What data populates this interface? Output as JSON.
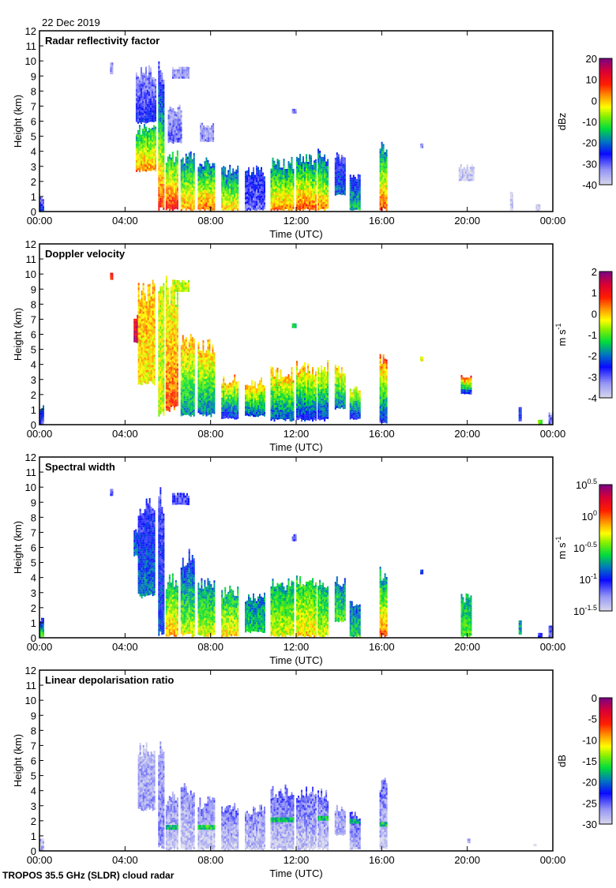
{
  "date": "22 Dec 2019",
  "footer": "TROPOS 35.5 GHz (SLDR) cloud radar",
  "chart_data": [
    {
      "type": "heatmap",
      "title": "Radar reflectivity factor",
      "xlabel": "Time (UTC)",
      "ylabel": "Height (km)",
      "xlim": [
        0,
        24
      ],
      "ylim": [
        0,
        12
      ],
      "x_ticks": [
        "00:00",
        "04:00",
        "08:00",
        "12:00",
        "16:00",
        "20:00",
        "00:00"
      ],
      "y_ticks": [
        "0",
        "1",
        "2",
        "3",
        "4",
        "5",
        "6",
        "7",
        "8",
        "9",
        "10",
        "11",
        "12"
      ],
      "colorbar": {
        "unit": "dBz",
        "range": [
          -40,
          20
        ],
        "scale": "linear",
        "ticks": [
          {
            "base": "20"
          },
          {
            "base": "10"
          },
          {
            "base": "0"
          },
          {
            "base": "-10"
          },
          {
            "base": "-20"
          },
          {
            "base": "-30"
          },
          {
            "base": "-40"
          }
        ]
      },
      "echo_fields": [
        "start_hour",
        "end_hour",
        "base_km",
        "top_km",
        "value_at_base",
        "value_at_top"
      ],
      "echoes": [
        [
          0.0,
          0.15,
          0,
          1.0,
          -25,
          -32
        ],
        [
          3.3,
          3.4,
          9.1,
          9.9,
          -33,
          -35
        ],
        [
          4.5,
          5.4,
          5.8,
          9.6,
          -25,
          -33
        ],
        [
          4.5,
          5.4,
          2.6,
          5.8,
          3,
          -15
        ],
        [
          5.55,
          5.8,
          0,
          10,
          8,
          -30
        ],
        [
          5.9,
          6.45,
          0,
          4.2,
          10,
          -15
        ],
        [
          6.2,
          7.0,
          8.8,
          9.6,
          -32,
          -36
        ],
        [
          6.0,
          6.6,
          4.5,
          7.0,
          -30,
          -34
        ],
        [
          6.6,
          7.2,
          0,
          4.1,
          2,
          -20
        ],
        [
          7.4,
          8.2,
          0,
          3.6,
          5,
          -20
        ],
        [
          7.5,
          8.1,
          4.6,
          5.8,
          -32,
          -35
        ],
        [
          8.5,
          9.3,
          0,
          3.1,
          0,
          -22
        ],
        [
          9.6,
          10.5,
          0,
          3.0,
          -30,
          -25
        ],
        [
          10.8,
          11.9,
          0,
          3.6,
          3,
          -20
        ],
        [
          11.8,
          11.95,
          6.5,
          6.8,
          -32,
          -32
        ],
        [
          12.0,
          12.9,
          0,
          4.0,
          6,
          -20
        ],
        [
          13.0,
          13.5,
          0,
          4.3,
          3,
          -22
        ],
        [
          13.8,
          14.3,
          1,
          4.0,
          -20,
          -28
        ],
        [
          14.5,
          15.0,
          0,
          2.6,
          -15,
          -25
        ],
        [
          15.9,
          16.2,
          0,
          5.0,
          6,
          -20
        ],
        [
          17.8,
          17.9,
          4.2,
          4.5,
          -32,
          -32
        ],
        [
          19.6,
          20.3,
          2.0,
          3.0,
          -38,
          -38
        ],
        [
          22.0,
          22.1,
          0,
          1.3,
          -39,
          -39
        ],
        [
          23.2,
          23.4,
          0,
          0.5,
          -39,
          -39
        ]
      ]
    },
    {
      "type": "heatmap",
      "title": "Doppler velocity",
      "xlabel": "Time (UTC)",
      "ylabel": "Height (km)",
      "xlim": [
        0,
        24
      ],
      "ylim": [
        0,
        12
      ],
      "x_ticks": [
        "00:00",
        "04:00",
        "08:00",
        "12:00",
        "16:00",
        "20:00",
        "00:00"
      ],
      "y_ticks": [
        "0",
        "1",
        "2",
        "3",
        "4",
        "5",
        "6",
        "7",
        "8",
        "9",
        "10",
        "11",
        "12"
      ],
      "colorbar": {
        "unit": "m s",
        "unit_exp": "-1",
        "range": [
          -4,
          2
        ],
        "scale": "linear",
        "ticks": [
          {
            "base": "2"
          },
          {
            "base": "1"
          },
          {
            "base": "0"
          },
          {
            "base": "-1"
          },
          {
            "base": "-2"
          },
          {
            "base": "-3"
          },
          {
            "base": "-4"
          }
        ]
      },
      "echo_fields": [
        "start_hour",
        "end_hour",
        "base_km",
        "top_km",
        "value_at_base",
        "value_at_top"
      ],
      "echoes": [
        [
          0.0,
          0.15,
          0,
          1.2,
          -3,
          -2
        ],
        [
          3.3,
          3.4,
          9.6,
          10.0,
          0.8,
          0.8
        ],
        [
          4.4,
          4.6,
          5.4,
          7.2,
          1.6,
          1.2
        ],
        [
          4.6,
          5.4,
          2.6,
          9.6,
          -0.2,
          0.1
        ],
        [
          5.55,
          5.8,
          0.5,
          10,
          -0.5,
          -0.4
        ],
        [
          5.9,
          6.45,
          0.8,
          10,
          0.6,
          -0.5
        ],
        [
          6.2,
          7.0,
          8.8,
          9.6,
          -0.5,
          -0.5
        ],
        [
          6.6,
          7.2,
          0.5,
          6.0,
          -1.8,
          0.2
        ],
        [
          7.4,
          8.2,
          0.5,
          6.0,
          -2,
          0.2
        ],
        [
          8.5,
          9.3,
          0.3,
          3.4,
          -2.5,
          0.2
        ],
        [
          9.6,
          10.5,
          0.5,
          3.0,
          -2.2,
          0.2
        ],
        [
          10.8,
          11.9,
          0.2,
          3.8,
          -2.2,
          0.2
        ],
        [
          11.8,
          11.95,
          6.4,
          6.7,
          -1.5,
          -1.5
        ],
        [
          12.0,
          12.9,
          0.2,
          4.2,
          -2.5,
          0.1
        ],
        [
          13.0,
          13.5,
          0.2,
          4.3,
          -2.4,
          0
        ],
        [
          13.8,
          14.3,
          1,
          4.0,
          -2,
          0
        ],
        [
          14.5,
          15.0,
          0.3,
          2.6,
          -2.5,
          -0.2
        ],
        [
          15.9,
          16.2,
          0,
          5.0,
          -2.5,
          0.6
        ],
        [
          17.8,
          17.9,
          4.2,
          4.5,
          -0.3,
          -0.3
        ],
        [
          19.7,
          20.2,
          2.0,
          3.3,
          -2.5,
          1.0
        ],
        [
          22.4,
          22.5,
          0.2,
          1.2,
          -2.5,
          -2.5
        ],
        [
          23.3,
          23.5,
          0,
          0.3,
          -0.8,
          -0.8
        ],
        [
          23.8,
          24.0,
          0,
          0.8,
          -3,
          -3
        ]
      ]
    },
    {
      "type": "heatmap",
      "title": "Spectral width",
      "xlabel": "Time (UTC)",
      "ylabel": "Height (km)",
      "xlim": [
        0,
        24
      ],
      "ylim": [
        0,
        12
      ],
      "x_ticks": [
        "00:00",
        "04:00",
        "08:00",
        "12:00",
        "16:00",
        "20:00",
        "00:00"
      ],
      "y_ticks": [
        "0",
        "1",
        "2",
        "3",
        "4",
        "5",
        "6",
        "7",
        "8",
        "9",
        "10",
        "11",
        "12"
      ],
      "colorbar": {
        "unit": "m s",
        "unit_exp": "-1",
        "range": [
          -1.5,
          0.5
        ],
        "scale": "log10",
        "ticks": [
          {
            "base": "10",
            "exp": "0.5"
          },
          {
            "base": "10",
            "exp": "0"
          },
          {
            "base": "10",
            "exp": "-0.5"
          },
          {
            "base": "10",
            "exp": "-1"
          },
          {
            "base": "10",
            "exp": "-1.5"
          }
        ]
      },
      "echo_fields": [
        "start_hour",
        "end_hour",
        "base_km",
        "top_km",
        "value_at_base",
        "value_at_top"
      ],
      "echoes": [
        [
          0.0,
          0.15,
          0,
          1.4,
          -0.5,
          -1.1
        ],
        [
          3.3,
          3.4,
          9.4,
          9.9,
          -1.1,
          -1.1
        ],
        [
          4.4,
          4.6,
          5.4,
          7.2,
          -0.8,
          -1.0
        ],
        [
          4.6,
          5.4,
          2.6,
          9.6,
          -0.8,
          -1.1
        ],
        [
          5.55,
          5.8,
          0,
          10,
          -0.9,
          -1.1
        ],
        [
          5.9,
          6.45,
          0,
          4.2,
          -0.1,
          -0.7
        ],
        [
          6.2,
          7.0,
          8.8,
          9.6,
          -1.1,
          -1.1
        ],
        [
          6.6,
          7.2,
          0,
          6.0,
          -0.3,
          -1.0
        ],
        [
          7.4,
          8.2,
          0,
          4.0,
          -0.3,
          -0.8
        ],
        [
          8.5,
          9.3,
          0,
          3.4,
          -0.2,
          -0.7
        ],
        [
          9.6,
          10.5,
          0.3,
          3.0,
          -0.6,
          -0.8
        ],
        [
          10.8,
          11.9,
          0,
          4.0,
          -0.3,
          -0.7
        ],
        [
          11.8,
          11.95,
          6.4,
          6.8,
          -1.1,
          -1.1
        ],
        [
          12.0,
          12.9,
          0,
          4.2,
          -0.2,
          -0.6
        ],
        [
          13.0,
          13.5,
          0,
          4.3,
          -0.3,
          -0.7
        ],
        [
          13.8,
          14.3,
          1,
          4.0,
          -0.5,
          -0.8
        ],
        [
          14.5,
          15.0,
          0,
          2.6,
          -0.6,
          -0.9
        ],
        [
          15.9,
          16.2,
          0,
          5.0,
          0.0,
          -0.8
        ],
        [
          17.8,
          17.9,
          4.2,
          4.5,
          -0.9,
          -0.9
        ],
        [
          19.7,
          20.2,
          0,
          3.0,
          -0.5,
          -0.7
        ],
        [
          22.4,
          22.5,
          0.2,
          1.2,
          -0.7,
          -0.7
        ],
        [
          23.3,
          23.5,
          0,
          0.3,
          -1.1,
          -1.1
        ],
        [
          23.8,
          24.0,
          0,
          0.8,
          -1.1,
          -1.1
        ]
      ]
    },
    {
      "type": "heatmap",
      "title": "Linear depolarisation ratio",
      "xlabel": "Time (UTC)",
      "ylabel": "Height (km)",
      "xlim": [
        0,
        24
      ],
      "ylim": [
        0,
        12
      ],
      "x_ticks": [
        "00:00",
        "04:00",
        "08:00",
        "12:00",
        "16:00",
        "20:00",
        "00:00"
      ],
      "y_ticks": [
        "0",
        "1",
        "2",
        "3",
        "4",
        "5",
        "6",
        "7",
        "8",
        "9",
        "10",
        "11",
        "12"
      ],
      "colorbar": {
        "unit": "dB",
        "range": [
          -30,
          0
        ],
        "scale": "linear",
        "ticks": [
          {
            "base": "0"
          },
          {
            "base": "-5"
          },
          {
            "base": "-10"
          },
          {
            "base": "-15"
          },
          {
            "base": "-20"
          },
          {
            "base": "-25"
          },
          {
            "base": "-30"
          }
        ]
      },
      "echo_fields": [
        "start_hour",
        "end_hour",
        "base_km",
        "top_km",
        "value_at_base",
        "value_at_top"
      ],
      "echoes": [
        [
          0.0,
          0.15,
          0,
          1.0,
          -28,
          -28
        ],
        [
          4.6,
          5.4,
          2.6,
          7.2,
          -27,
          -28
        ],
        [
          5.55,
          5.8,
          0,
          8.2,
          -26,
          -27
        ],
        [
          5.9,
          6.45,
          0,
          4.0,
          -29,
          -26
        ],
        [
          5.9,
          6.45,
          1.4,
          1.7,
          -17,
          -17
        ],
        [
          6.6,
          7.2,
          0,
          4.5,
          -29,
          -26
        ],
        [
          7.4,
          8.2,
          0,
          3.6,
          -29,
          -26
        ],
        [
          7.4,
          8.2,
          1.4,
          1.7,
          -16,
          -16
        ],
        [
          8.5,
          9.3,
          0,
          3.2,
          -29,
          -25
        ],
        [
          9.6,
          10.5,
          0,
          3.0,
          -29,
          -26
        ],
        [
          10.8,
          11.9,
          0,
          4.4,
          -29,
          -25
        ],
        [
          10.8,
          11.9,
          1.9,
          2.2,
          -17,
          -17
        ],
        [
          12.0,
          12.9,
          0,
          4.2,
          -29,
          -25
        ],
        [
          13.0,
          13.5,
          0,
          4.3,
          -29,
          -25
        ],
        [
          13.0,
          13.5,
          2.0,
          2.3,
          -17,
          -17
        ],
        [
          13.8,
          14.3,
          1,
          3.0,
          -28,
          -26
        ],
        [
          14.5,
          15.0,
          0,
          2.6,
          -28,
          -24
        ],
        [
          14.5,
          15.0,
          1.8,
          2.0,
          -18,
          -18
        ],
        [
          15.9,
          16.2,
          0,
          5.0,
          -29,
          -25
        ],
        [
          15.9,
          16.2,
          1.6,
          1.9,
          -17,
          -17
        ],
        [
          20.0,
          20.1,
          0.5,
          0.8,
          -28,
          -28
        ],
        [
          23.1,
          23.2,
          0.3,
          0.5,
          -28,
          -28
        ]
      ]
    }
  ]
}
